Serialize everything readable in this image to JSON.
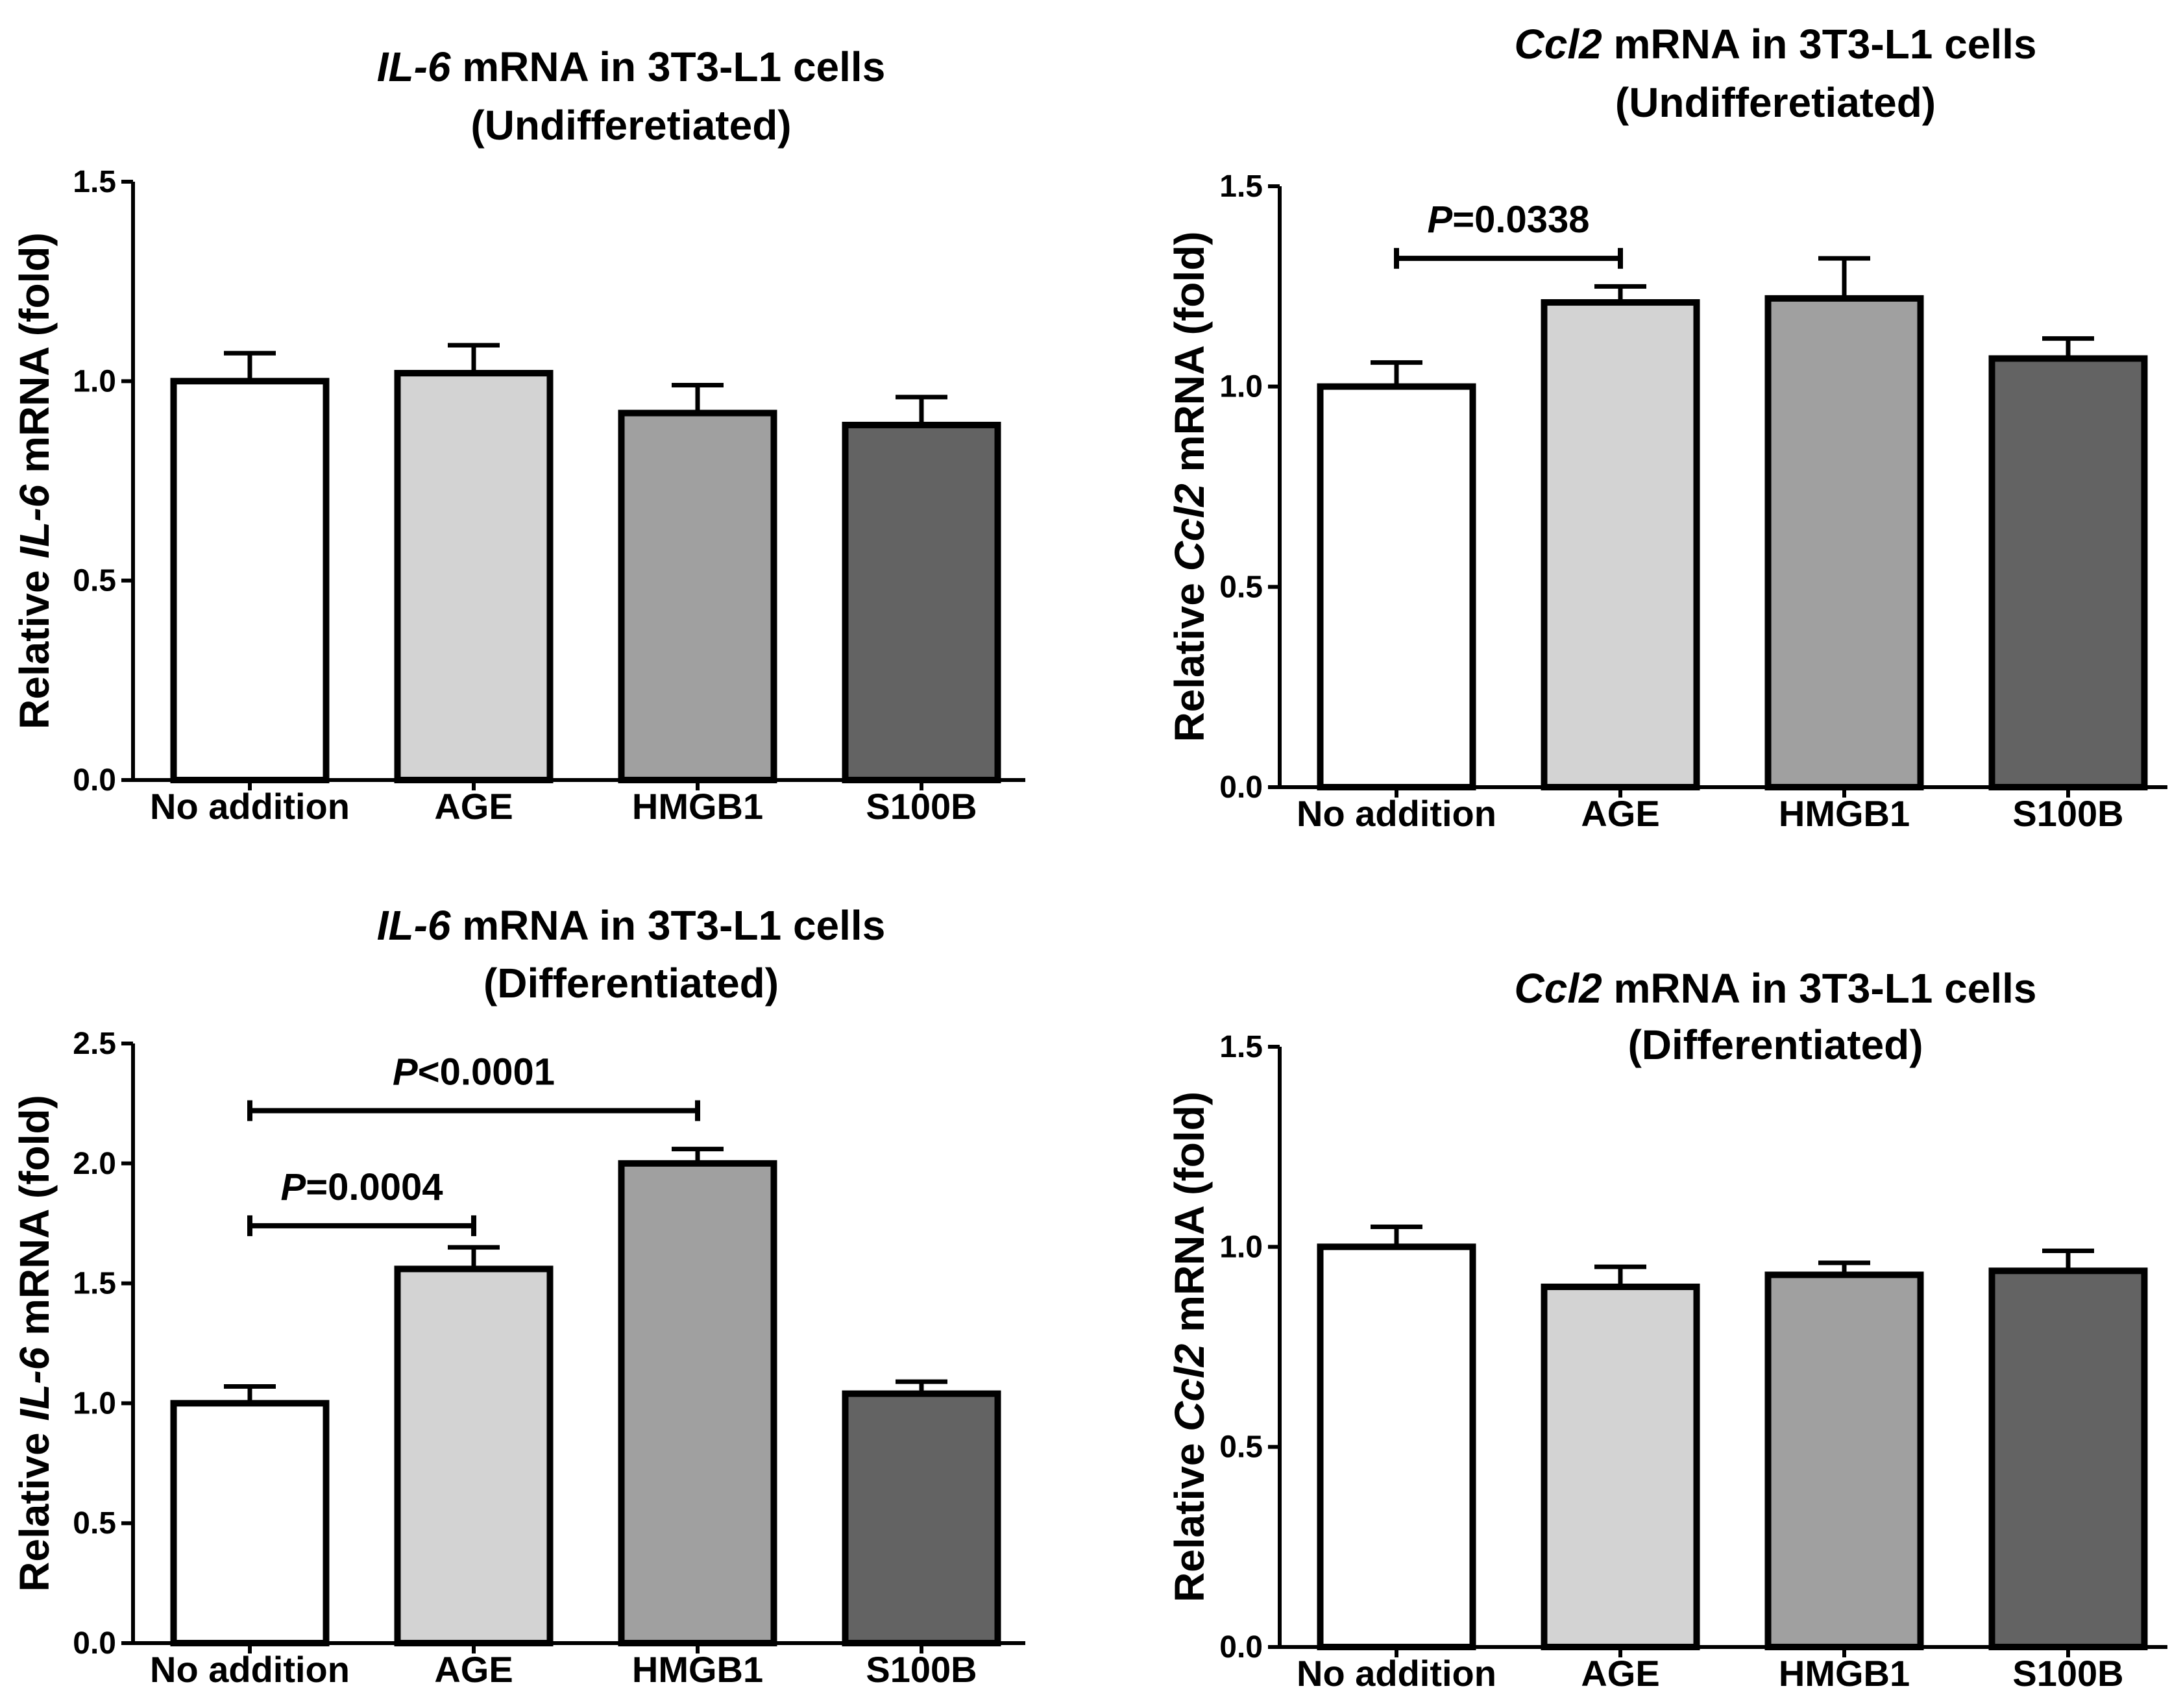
{
  "chart_data": [
    {
      "type": "bar",
      "title_gene": "IL-6",
      "title_rest": " mRNA in 3T3-L1 cells",
      "subtitle": "(Undifferetiated)",
      "ylabel_pre": "Relative ",
      "ylabel_gene": "IL-6",
      "ylabel_post": " mRNA (fold)",
      "xlabel": "",
      "ylim": [
        0,
        1.5
      ],
      "yticks": [
        0,
        0.5,
        1.0,
        1.5
      ],
      "ytick_labels": [
        "0.0",
        "0.5",
        "1.0",
        "1.5"
      ],
      "categories": [
        "No addition",
        "AGE",
        "HMGB1",
        "S100B"
      ],
      "values": [
        1.0,
        1.02,
        0.92,
        0.89
      ],
      "errors": [
        0.07,
        0.07,
        0.07,
        0.07
      ],
      "bar_colors": [
        "#ffffff",
        "#d3d3d3",
        "#a0a0a0",
        "#636363"
      ],
      "brackets": []
    },
    {
      "type": "bar",
      "title_gene": "Ccl2",
      "title_rest": " mRNA in 3T3-L1 cells",
      "subtitle": "(Undifferetiated)",
      "ylabel_pre": "Relative ",
      "ylabel_gene": "Ccl2",
      "ylabel_post": " mRNA (fold)",
      "xlabel": "",
      "ylim": [
        0,
        1.5
      ],
      "yticks": [
        0,
        0.5,
        1.0,
        1.5
      ],
      "ytick_labels": [
        "0.0",
        "0.5",
        "1.0",
        "1.5"
      ],
      "categories": [
        "No addition",
        "AGE",
        "HMGB1",
        "S100B"
      ],
      "values": [
        1.0,
        1.21,
        1.22,
        1.07
      ],
      "errors": [
        0.06,
        0.04,
        0.1,
        0.05
      ],
      "bar_colors": [
        "#ffffff",
        "#d3d3d3",
        "#a0a0a0",
        "#636363"
      ],
      "brackets": [
        {
          "from": 0,
          "to": 1,
          "y": 1.32,
          "p_symbol": "P",
          "p_text": "=0.0338"
        }
      ]
    },
    {
      "type": "bar",
      "title_gene": "IL-6",
      "title_rest": " mRNA in 3T3-L1 cells",
      "subtitle": "(Differentiated)",
      "ylabel_pre": "Relative ",
      "ylabel_gene": "IL-6",
      "ylabel_post": " mRNA (fold)",
      "xlabel": "",
      "ylim": [
        0,
        2.5
      ],
      "yticks": [
        0,
        0.5,
        1.0,
        1.5,
        2.0,
        2.5
      ],
      "ytick_labels": [
        "0.0",
        "0.5",
        "1.0",
        "1.5",
        "2.0",
        "2.5"
      ],
      "categories": [
        "No addition",
        "AGE",
        "HMGB1",
        "S100B"
      ],
      "values": [
        1.0,
        1.56,
        2.0,
        1.04
      ],
      "errors": [
        0.07,
        0.09,
        0.06,
        0.05
      ],
      "bar_colors": [
        "#ffffff",
        "#d3d3d3",
        "#a0a0a0",
        "#636363"
      ],
      "brackets": [
        {
          "from": 0,
          "to": 2,
          "y": 2.22,
          "p_symbol": "P",
          "p_text": "<0.0001"
        },
        {
          "from": 0,
          "to": 1,
          "y": 1.74,
          "p_symbol": "P",
          "p_text": "=0.0004"
        }
      ]
    },
    {
      "type": "bar",
      "title_gene": "Ccl2",
      "title_rest": " mRNA in 3T3-L1 cells",
      "subtitle": "(Differentiated)",
      "ylabel_pre": "Relative ",
      "ylabel_gene": "Ccl2",
      "ylabel_post": " mRNA (fold)",
      "xlabel": "",
      "ylim": [
        0,
        1.5
      ],
      "yticks": [
        0,
        0.5,
        1.0,
        1.5
      ],
      "ytick_labels": [
        "0.0",
        "0.5",
        "1.0",
        "1.5"
      ],
      "categories": [
        "No addition",
        "AGE",
        "HMGB1",
        "S100B"
      ],
      "values": [
        1.0,
        0.9,
        0.93,
        0.94
      ],
      "errors": [
        0.05,
        0.05,
        0.03,
        0.05
      ],
      "bar_colors": [
        "#ffffff",
        "#d3d3d3",
        "#a0a0a0",
        "#636363"
      ],
      "brackets": []
    }
  ]
}
